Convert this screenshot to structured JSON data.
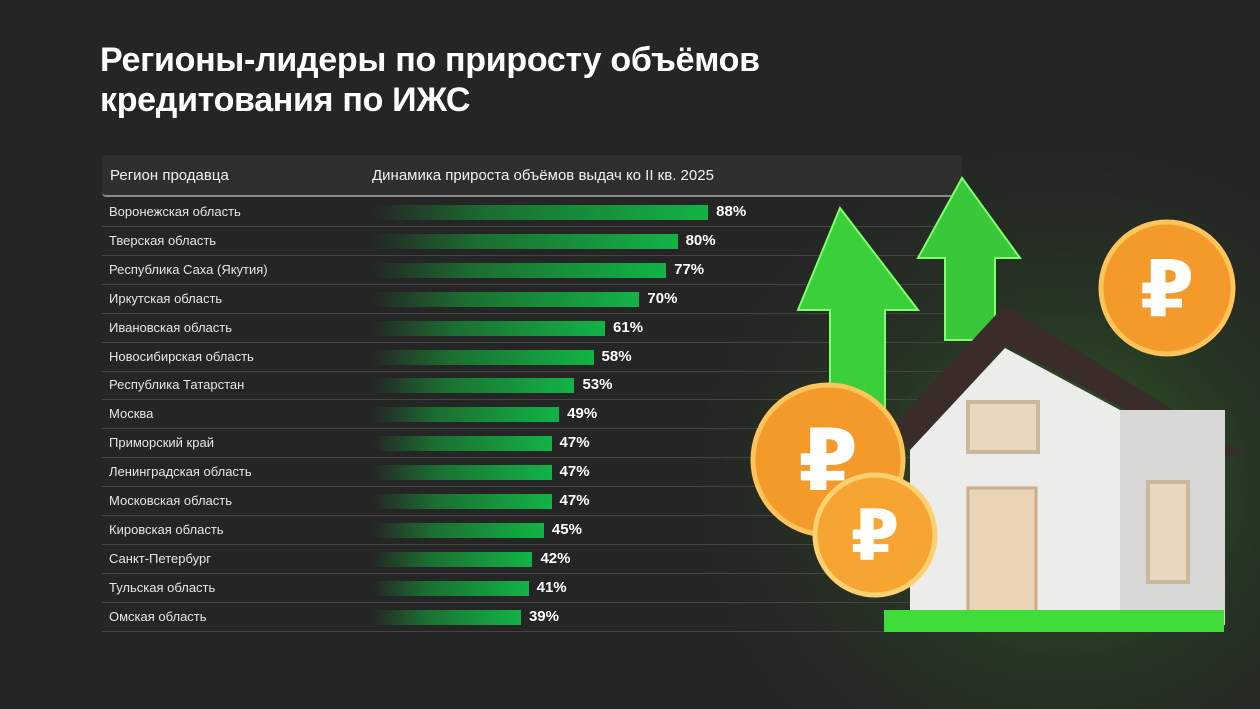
{
  "title_lines": [
    "Регионы-лидеры по приросту объёмов",
    "кредитования по ИЖС"
  ],
  "table": {
    "col_region": "Регион продавца",
    "col_dynamics": "Динамика прироста объёмов выдач ко II кв. 2025"
  },
  "colors": {
    "bar": "#12b446",
    "background": "#252525"
  },
  "chart_data": {
    "type": "bar",
    "orientation": "horizontal",
    "categories": [
      "Воронежская область",
      "Тверская область",
      "Республика Саха (Якутия)",
      "Иркутская область",
      "Ивановская область",
      "Новосибирская область",
      "Республика Татарстан",
      "Москва",
      "Приморский край",
      "Ленинградская область",
      "Московская область",
      "Кировская область",
      "Санкт-Петербург",
      "Тульская область",
      "Омская область"
    ],
    "values": [
      88,
      80,
      77,
      70,
      61,
      58,
      53,
      49,
      47,
      47,
      47,
      45,
      42,
      41,
      39
    ],
    "labels": [
      "88%",
      "80%",
      "77%",
      "70%",
      "61%",
      "58%",
      "53%",
      "49%",
      "47%",
      "47%",
      "47%",
      "45%",
      "42%",
      "41%",
      "39%"
    ],
    "unit": "%"
  }
}
